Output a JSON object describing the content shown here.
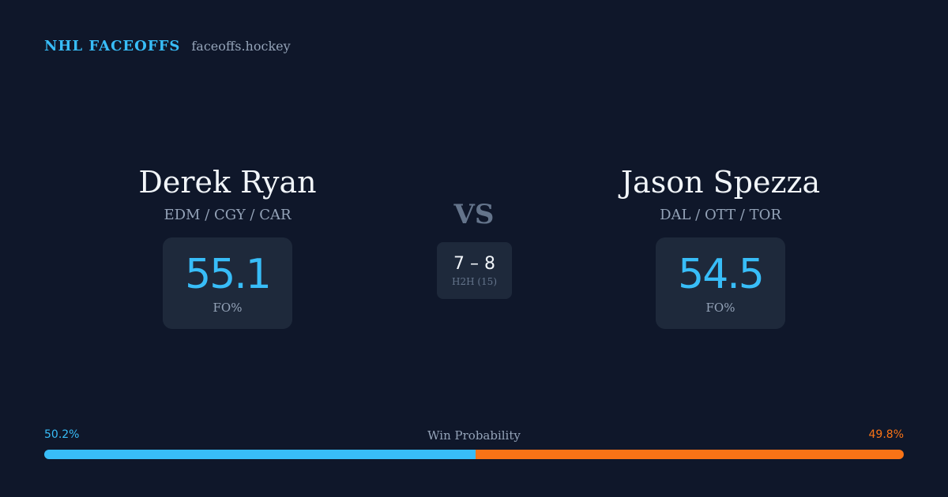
{
  "brand": {
    "name": "NHL FACEOFFS",
    "url": "faceoffs.hockey"
  },
  "players": [
    {
      "name": "Derek Ryan",
      "teams": "EDM / CGY / CAR",
      "fo_pct": "55.1",
      "fo_label": "FO%"
    },
    {
      "name": "Jason Spezza",
      "teams": "DAL / OTT / TOR",
      "fo_pct": "54.5",
      "fo_label": "FO%"
    }
  ],
  "matchup": {
    "vs_label": "VS",
    "h2h_score": "7 – 8",
    "h2h_label": "H2H (15)"
  },
  "win_probability": {
    "title": "Win Probability",
    "left_label": "50.2%",
    "right_label": "49.8%",
    "left_fraction": 0.502,
    "right_fraction": 0.498
  },
  "colors": {
    "background": "#0f172a",
    "card": "#1e293b",
    "accent_blue": "#38bdf8",
    "accent_orange": "#f97316"
  }
}
